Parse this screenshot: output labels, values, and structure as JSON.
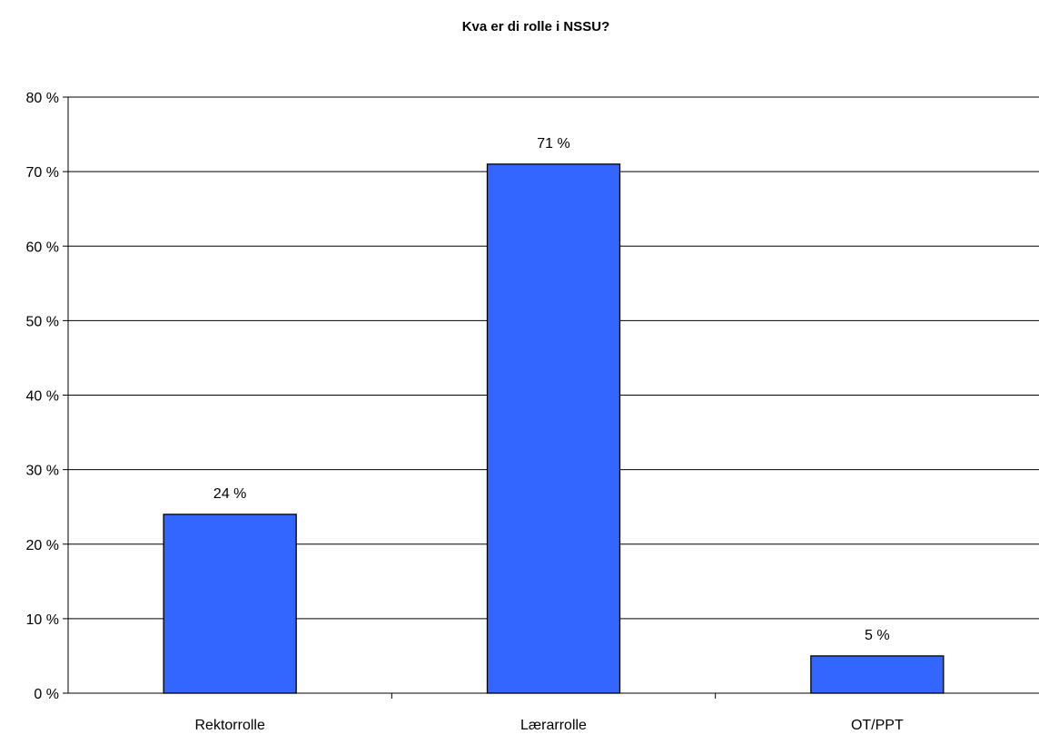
{
  "chart_data": {
    "type": "bar",
    "title": "Kva er di rolle i NSSU?",
    "categories": [
      "Rektorrolle",
      "Lærarrolle",
      "OT/PPT"
    ],
    "values": [
      24,
      71,
      5
    ],
    "value_labels": [
      "24 %",
      "71 %",
      "5 %"
    ],
    "ylim": [
      0,
      80
    ],
    "yticks": [
      0,
      10,
      20,
      30,
      40,
      50,
      60,
      70,
      80
    ],
    "ytick_labels": [
      "0 %",
      "10 %",
      "20 %",
      "30 %",
      "40 %",
      "50 %",
      "60 %",
      "70 %",
      "80 %"
    ],
    "xlabel": "",
    "ylabel": "",
    "grid": true,
    "legend": "none",
    "colors": {
      "bar": "#3366FF",
      "bar_edge": "#000000",
      "grid": "#000000"
    }
  }
}
